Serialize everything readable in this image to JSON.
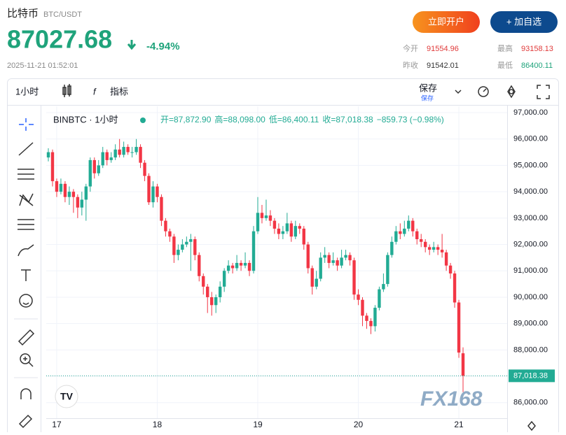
{
  "header": {
    "name": "比特币",
    "pair": "BTC/USDT",
    "price": "87027.68",
    "change": "-4.94%",
    "time": "2025-11-21 01:52:01",
    "buttons": [
      "立即开户",
      "+ 加自选"
    ],
    "stats": [
      {
        "label": "今开",
        "value": "91554.96"
      },
      {
        "label": "最高",
        "value": "93158.13"
      },
      {
        "label": "昨收",
        "value": "91542.01"
      },
      {
        "label": "最低",
        "value": "86400.11"
      }
    ]
  },
  "toolbar": {
    "interval": "1小时",
    "indicators": "指标",
    "save": "保存",
    "save_sub": "保存"
  },
  "watermark": "FX168",
  "chart_data": {
    "type": "candlestick",
    "legend": {
      "symbol": "BINBTC · 1小时",
      "ohlc": [
        "开=87,872.90",
        "高=88,098.00",
        "低=86,400.11",
        "收=87,018.38"
      ],
      "change": "−859.73 (−0.98%)"
    },
    "last_price_label": "87,018.38",
    "up_color": "#22ab94",
    "down_color": "#f23645",
    "categories": [
      null,
      null,
      "17",
      null,
      null,
      null,
      null,
      null,
      null,
      null,
      null,
      null,
      null,
      null,
      null,
      null,
      null,
      null,
      null,
      null,
      null,
      null,
      null,
      null,
      null,
      null,
      "18",
      null,
      null,
      null,
      null,
      null,
      null,
      null,
      null,
      null,
      null,
      null,
      null,
      null,
      null,
      null,
      null,
      null,
      null,
      null,
      null,
      null,
      null,
      null,
      "19",
      null,
      null,
      null,
      null,
      null,
      null,
      null,
      null,
      null,
      null,
      null,
      null,
      null,
      null,
      null,
      null,
      null,
      null,
      null,
      null,
      null,
      null,
      null,
      "20",
      null,
      null,
      null,
      null,
      null,
      null,
      null,
      null,
      null,
      null,
      null,
      null,
      null,
      null,
      null,
      null,
      null,
      null,
      null,
      null,
      null,
      null,
      null,
      "21",
      null
    ],
    "open": [
      95300,
      95500,
      94400,
      94000,
      94300,
      93800,
      94000,
      93800,
      93400,
      93700,
      94200,
      95200,
      94700,
      95000,
      95500,
      95200,
      95300,
      95600,
      95400,
      95700,
      95500,
      95500,
      95700,
      95100,
      94600,
      93600,
      94200,
      93800,
      92900,
      92500,
      92300,
      91600,
      91800,
      92000,
      92100,
      92200,
      91600,
      90800,
      90400,
      90000,
      89700,
      90000,
      90400,
      91000,
      91200,
      91100,
      91300,
      91200,
      91300,
      91000,
      92500,
      93200,
      93000,
      93100,
      92900,
      92600,
      92400,
      92500,
      92800,
      92300,
      92700,
      92600,
      92000,
      91100,
      90400,
      90700,
      91500,
      91600,
      91300,
      91400,
      91200,
      91500,
      91600,
      91400,
      90100,
      89900,
      89300,
      89100,
      88900,
      89600,
      90300,
      90500,
      91600,
      92100,
      92500,
      92400,
      92600,
      92900,
      92500,
      92200,
      92100,
      91900,
      91800,
      91900,
      91800,
      91700,
      91200,
      90900,
      89800,
      87872.9
    ],
    "high": [
      95650,
      95600,
      94500,
      94500,
      94400,
      94200,
      94100,
      93900,
      94000,
      94300,
      95300,
      95300,
      95200,
      95700,
      95600,
      95500,
      95800,
      96000,
      95900,
      95800,
      95700,
      96000,
      95800,
      95200,
      94700,
      94400,
      94300,
      93900,
      93000,
      92600,
      92400,
      92000,
      92200,
      92300,
      92400,
      92300,
      91700,
      90900,
      90500,
      90200,
      90100,
      90600,
      91100,
      91400,
      91300,
      91600,
      91400,
      91700,
      91400,
      92700,
      93800,
      93500,
      93700,
      93300,
      93000,
      92800,
      92700,
      93200,
      92900,
      92900,
      92800,
      92700,
      92100,
      91200,
      91000,
      91700,
      91900,
      91700,
      91700,
      91500,
      91800,
      91800,
      91700,
      91500,
      90300,
      90000,
      89400,
      89200,
      89700,
      90400,
      90900,
      91700,
      92300,
      92700,
      92800,
      92900,
      93100,
      93000,
      92600,
      92400,
      92200,
      92000,
      92100,
      92000,
      92400,
      91800,
      91300,
      91000,
      89900,
      88098
    ],
    "low": [
      95150,
      94200,
      93800,
      93900,
      93600,
      93500,
      93200,
      93000,
      93100,
      92900,
      94000,
      94500,
      94600,
      94900,
      95000,
      95100,
      95200,
      95300,
      95300,
      95400,
      95300,
      95400,
      94900,
      94400,
      93500,
      93400,
      93600,
      92700,
      92300,
      92100,
      91300,
      91400,
      91700,
      91900,
      91000,
      91400,
      90600,
      90100,
      89400,
      89300,
      89400,
      89800,
      90200,
      90900,
      90900,
      91000,
      91000,
      91100,
      90800,
      90900,
      92400,
      92800,
      92900,
      92700,
      92400,
      92200,
      92200,
      92400,
      92100,
      92200,
      92400,
      91800,
      90900,
      90100,
      90300,
      90600,
      91300,
      91100,
      91200,
      91000,
      91100,
      91400,
      91200,
      89900,
      89700,
      88900,
      88800,
      88600,
      88700,
      89500,
      90200,
      90400,
      91500,
      92000,
      92200,
      92300,
      92500,
      92300,
      92000,
      91900,
      91700,
      91600,
      91700,
      91600,
      91500,
      91000,
      90700,
      89600,
      87700,
      86400.11
    ],
    "close": [
      95500,
      94400,
      94000,
      94300,
      93800,
      94000,
      93800,
      93400,
      93700,
      94200,
      95200,
      94700,
      95000,
      95500,
      95200,
      95300,
      95600,
      95400,
      95700,
      95500,
      95500,
      95700,
      95100,
      94600,
      93600,
      94200,
      93800,
      92900,
      92500,
      92300,
      91600,
      91800,
      92000,
      92100,
      92200,
      91600,
      90800,
      90400,
      90000,
      89700,
      90000,
      90400,
      91000,
      91200,
      91100,
      91300,
      91200,
      91300,
      91000,
      92500,
      93200,
      93000,
      93100,
      92900,
      92600,
      92400,
      92500,
      92800,
      92300,
      92700,
      92600,
      92000,
      91100,
      90400,
      90700,
      91500,
      91600,
      91300,
      91400,
      91200,
      91500,
      91600,
      91400,
      90100,
      89900,
      89300,
      89100,
      88900,
      89600,
      90300,
      90500,
      91600,
      92100,
      92500,
      92400,
      92600,
      92900,
      92500,
      92200,
      92100,
      91900,
      91800,
      91900,
      91800,
      91700,
      91200,
      90900,
      89800,
      87900,
      87018.38
    ],
    "ylim": [
      85410,
      97240
    ],
    "yticks": [
      {
        "value": 86000,
        "label": "86,000.00"
      },
      {
        "value": 87000,
        "label": "87,000.00"
      },
      {
        "value": 88000,
        "label": "88,000.00"
      },
      {
        "value": 89000,
        "label": "89,000.00"
      },
      {
        "value": 90000,
        "label": "90,000.00"
      },
      {
        "value": 91000,
        "label": "91,000.00"
      },
      {
        "value": 92000,
        "label": "92,000.00"
      },
      {
        "value": 93000,
        "label": "93,000.00"
      },
      {
        "value": 94000,
        "label": "94,000.00"
      },
      {
        "value": 95000,
        "label": "95,000.00"
      },
      {
        "value": 96000,
        "label": "96,000.00"
      },
      {
        "value": 97000,
        "label": "97,000.00"
      }
    ],
    "grid": true
  }
}
